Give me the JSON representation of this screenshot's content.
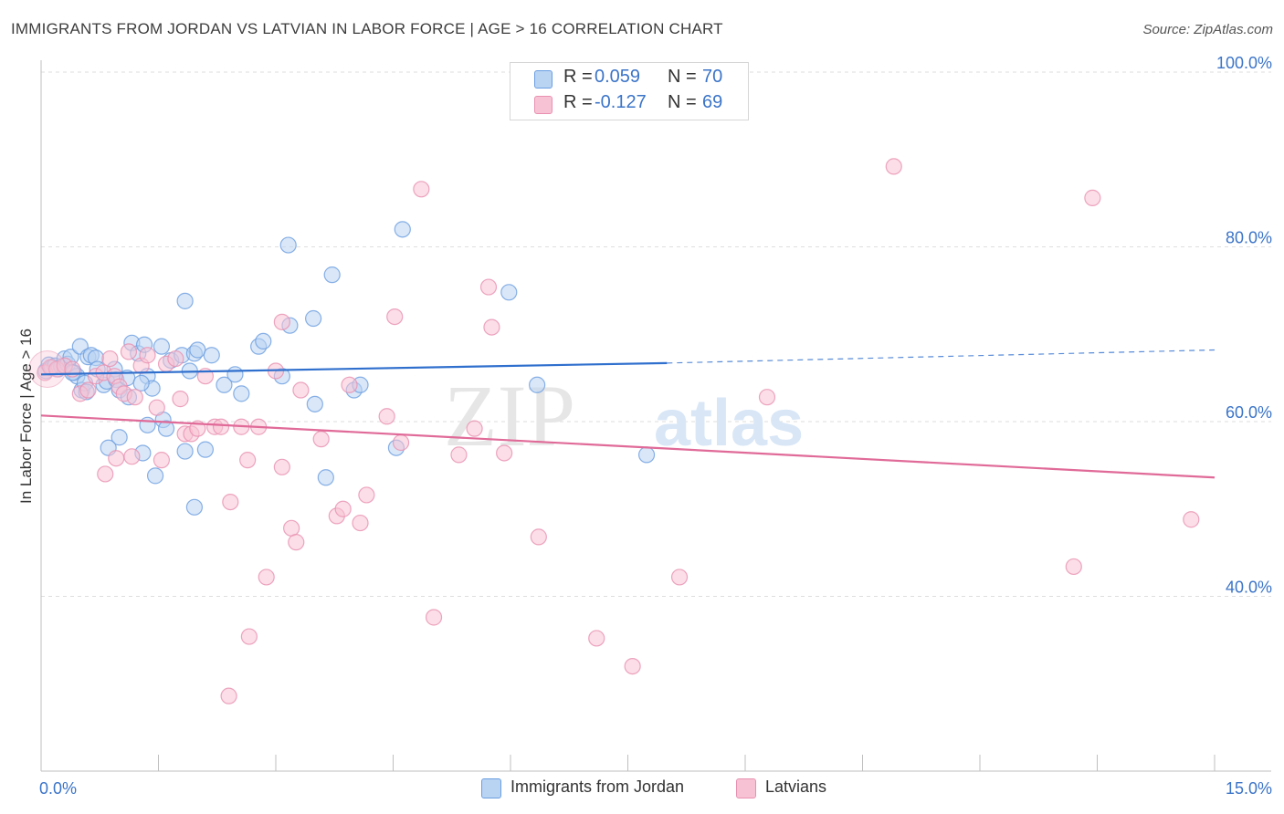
{
  "title": "IMMIGRANTS FROM JORDAN VS LATVIAN IN LABOR FORCE | AGE > 16 CORRELATION CHART",
  "source": "Source: ZipAtlas.com",
  "legend_top": [
    {
      "swatch_color": "#b9d3f3",
      "r_label": "R =",
      "r_value": "0.059",
      "n_label": "N =",
      "n_value": "70"
    },
    {
      "swatch_color": "#f7c3d4",
      "r_label": "R =",
      "r_value": "-0.127",
      "n_label": "N =",
      "n_value": "69"
    }
  ],
  "legend_bottom": [
    {
      "label": "Immigrants from Jordan",
      "swatch_color": "#b9d3f3"
    },
    {
      "label": "Latvians",
      "swatch_color": "#f7c3d4"
    }
  ],
  "watermark": {
    "zip": "ZIP",
    "atlas": "atlas"
  },
  "colors": {
    "blue_fill": "#b9d3f3",
    "blue_stroke": "#6b9ee0",
    "blue_line": "#2f6fcd",
    "pink_fill": "#f7c3d4",
    "pink_stroke": "#e890b0",
    "pink_line": "#e06a98",
    "tick_label": "#3b74c8",
    "grid": "#dedede"
  },
  "chart_data": {
    "type": "scatter",
    "title": "IMMIGRANTS FROM JORDAN VS LATVIAN IN LABOR FORCE | AGE > 16 CORRELATION CHART",
    "xlabel": "",
    "ylabel": "In Labor Force | Age > 16",
    "xlim": [
      0,
      15
    ],
    "ylim": [
      20,
      100
    ],
    "x_tick_labels": [
      "0.0%",
      "15.0%"
    ],
    "y_ticks": [
      40,
      60,
      80,
      100
    ],
    "y_tick_labels": [
      "40.0%",
      "60.0%",
      "80.0%",
      "100.0%"
    ],
    "grid": true,
    "series": [
      {
        "name": "Immigrants from Jordan",
        "color": "#b9d3f3",
        "trend": {
          "x0": 0,
          "y0": 65.4,
          "x1": 8.0,
          "y1": 66.7,
          "dash_x1": 15.0,
          "dash_y1": 68.2
        },
        "points": [
          [
            0.06,
            65.8
          ],
          [
            0.1,
            66.5
          ],
          [
            0.14,
            66.2
          ],
          [
            0.18,
            66.4
          ],
          [
            0.22,
            66.0
          ],
          [
            0.26,
            66.3
          ],
          [
            0.3,
            67.2
          ],
          [
            0.34,
            66.6
          ],
          [
            0.38,
            67.4
          ],
          [
            0.42,
            65.6
          ],
          [
            0.46,
            65.2
          ],
          [
            0.5,
            68.6
          ],
          [
            0.52,
            63.6
          ],
          [
            0.56,
            64.4
          ],
          [
            0.6,
            67.4
          ],
          [
            0.64,
            67.6
          ],
          [
            0.7,
            67.3
          ],
          [
            0.8,
            64.2
          ],
          [
            0.84,
            64.6
          ],
          [
            0.94,
            66.0
          ],
          [
            0.96,
            64.8
          ],
          [
            1.0,
            63.6
          ],
          [
            1.1,
            65.0
          ],
          [
            1.16,
            69.0
          ],
          [
            1.24,
            67.8
          ],
          [
            1.36,
            65.2
          ],
          [
            1.32,
            68.8
          ],
          [
            1.42,
            63.8
          ],
          [
            1.54,
            68.6
          ],
          [
            1.66,
            67.0
          ],
          [
            1.8,
            67.6
          ],
          [
            1.84,
            73.8
          ],
          [
            1.96,
            67.8
          ],
          [
            2.0,
            68.2
          ],
          [
            2.18,
            67.6
          ],
          [
            2.1,
            56.8
          ],
          [
            1.46,
            53.8
          ],
          [
            1.56,
            60.2
          ],
          [
            1.3,
            56.4
          ],
          [
            1.0,
            58.2
          ],
          [
            0.86,
            57.0
          ],
          [
            1.36,
            59.6
          ],
          [
            1.84,
            56.6
          ],
          [
            1.96,
            50.2
          ],
          [
            2.48,
            65.4
          ],
          [
            2.56,
            63.2
          ],
          [
            2.78,
            68.6
          ],
          [
            2.84,
            69.2
          ],
          [
            3.08,
            65.2
          ],
          [
            3.18,
            71.0
          ],
          [
            3.16,
            80.2
          ],
          [
            3.48,
            71.8
          ],
          [
            3.5,
            62.0
          ],
          [
            3.64,
            53.6
          ],
          [
            3.72,
            76.8
          ],
          [
            4.0,
            63.6
          ],
          [
            4.08,
            64.2
          ],
          [
            4.54,
            57.0
          ],
          [
            4.62,
            82.0
          ],
          [
            5.98,
            74.8
          ],
          [
            6.34,
            64.2
          ],
          [
            7.74,
            56.2
          ],
          [
            1.28,
            64.4
          ],
          [
            0.72,
            66.0
          ],
          [
            1.12,
            62.8
          ],
          [
            2.34,
            64.2
          ],
          [
            1.9,
            65.8
          ],
          [
            0.4,
            65.6
          ],
          [
            0.58,
            63.4
          ],
          [
            1.6,
            59.2
          ]
        ]
      },
      {
        "name": "Latvians",
        "color": "#f7c3d4",
        "trend": {
          "x0": 0,
          "y0": 60.7,
          "x1": 15.0,
          "y1": 53.6
        },
        "points": [
          [
            0.05,
            65.6
          ],
          [
            0.12,
            66.2
          ],
          [
            0.2,
            66.0
          ],
          [
            0.3,
            66.4
          ],
          [
            0.4,
            66.0
          ],
          [
            0.5,
            63.2
          ],
          [
            0.6,
            63.6
          ],
          [
            0.7,
            65.2
          ],
          [
            0.8,
            65.6
          ],
          [
            0.88,
            67.2
          ],
          [
            0.94,
            65.2
          ],
          [
            1.0,
            64.0
          ],
          [
            1.06,
            63.2
          ],
          [
            1.12,
            68.0
          ],
          [
            1.2,
            62.8
          ],
          [
            1.28,
            66.4
          ],
          [
            1.36,
            67.6
          ],
          [
            1.48,
            61.6
          ],
          [
            1.6,
            66.6
          ],
          [
            1.72,
            67.2
          ],
          [
            1.78,
            62.6
          ],
          [
            1.84,
            58.6
          ],
          [
            1.92,
            58.6
          ],
          [
            2.0,
            59.2
          ],
          [
            2.1,
            65.2
          ],
          [
            2.22,
            59.4
          ],
          [
            2.3,
            59.4
          ],
          [
            2.42,
            50.8
          ],
          [
            2.56,
            59.4
          ],
          [
            2.64,
            55.6
          ],
          [
            2.66,
            35.4
          ],
          [
            2.78,
            59.4
          ],
          [
            2.88,
            42.2
          ],
          [
            3.0,
            65.8
          ],
          [
            3.08,
            71.4
          ],
          [
            3.08,
            54.8
          ],
          [
            3.2,
            47.8
          ],
          [
            3.26,
            46.2
          ],
          [
            3.32,
            63.6
          ],
          [
            3.58,
            58.0
          ],
          [
            3.78,
            49.2
          ],
          [
            3.86,
            50.0
          ],
          [
            3.94,
            64.2
          ],
          [
            4.08,
            48.4
          ],
          [
            4.16,
            51.6
          ],
          [
            4.42,
            60.6
          ],
          [
            4.52,
            72.0
          ],
          [
            4.6,
            57.6
          ],
          [
            4.86,
            86.6
          ],
          [
            5.02,
            37.6
          ],
          [
            5.34,
            56.2
          ],
          [
            5.54,
            59.2
          ],
          [
            5.72,
            75.4
          ],
          [
            5.76,
            70.8
          ],
          [
            5.92,
            56.4
          ],
          [
            6.36,
            46.8
          ],
          [
            7.1,
            35.2
          ],
          [
            7.56,
            32.0
          ],
          [
            8.16,
            42.2
          ],
          [
            9.28,
            62.8
          ],
          [
            10.9,
            89.2
          ],
          [
            13.2,
            43.4
          ],
          [
            13.44,
            85.6
          ],
          [
            14.7,
            48.8
          ],
          [
            2.4,
            28.6
          ],
          [
            0.82,
            54.0
          ],
          [
            1.16,
            56.0
          ],
          [
            0.96,
            55.8
          ],
          [
            1.54,
            55.6
          ]
        ]
      }
    ]
  }
}
